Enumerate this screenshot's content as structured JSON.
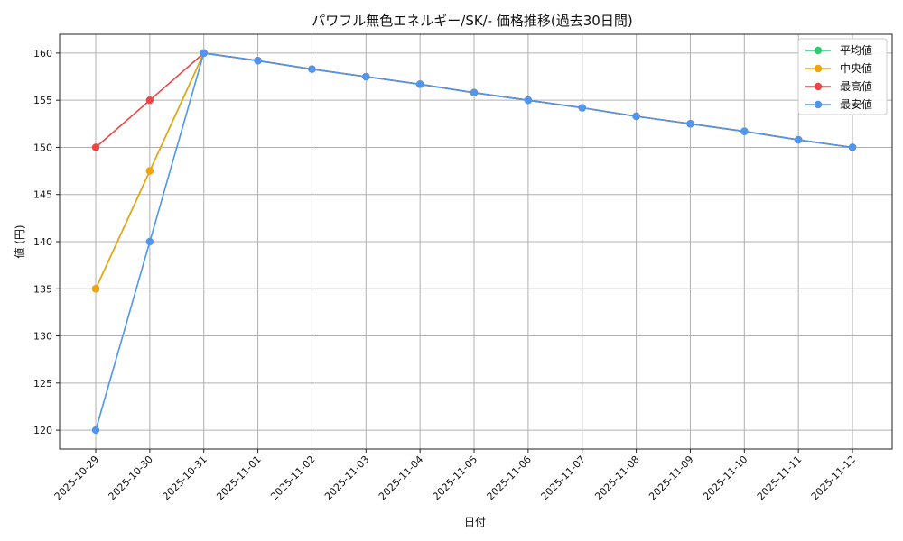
{
  "chart_data": {
    "type": "line",
    "title": "パワフル無色エネルギー/SK/- 価格推移(過去30日間)",
    "xlabel": "日付",
    "ylabel": "値 (円)",
    "categories": [
      "2025-10-29",
      "2025-10-30",
      "2025-10-31",
      "2025-11-01",
      "2025-11-02",
      "2025-11-03",
      "2025-11-04",
      "2025-11-05",
      "2025-11-06",
      "2025-11-07",
      "2025-11-08",
      "2025-11-09",
      "2025-11-10",
      "2025-11-11",
      "2025-11-12"
    ],
    "ylim": [
      118,
      162
    ],
    "yticks": [
      120,
      125,
      130,
      135,
      140,
      145,
      150,
      155,
      160
    ],
    "grid": true,
    "legend_position": "top-right",
    "series": [
      {
        "name": "平均値",
        "color": "#2ecc71",
        "values": [
          135,
          147.5,
          160,
          159.2,
          158.3,
          157.5,
          156.7,
          155.8,
          155.0,
          154.2,
          153.3,
          152.5,
          151.7,
          150.8,
          150.0
        ]
      },
      {
        "name": "中央値",
        "color": "#f0a30a",
        "values": [
          135,
          147.5,
          160,
          159.2,
          158.3,
          157.5,
          156.7,
          155.8,
          155.0,
          154.2,
          153.3,
          152.5,
          151.7,
          150.8,
          150.0
        ]
      },
      {
        "name": "最高値",
        "color": "#ef4444",
        "values": [
          150,
          155,
          160,
          159.2,
          158.3,
          157.5,
          156.7,
          155.8,
          155.0,
          154.2,
          153.3,
          152.5,
          151.7,
          150.8,
          150.0
        ]
      },
      {
        "name": "最安値",
        "color": "#4e96ef",
        "values": [
          120,
          140,
          160,
          159.2,
          158.3,
          157.5,
          156.7,
          155.8,
          155.0,
          154.2,
          153.3,
          152.5,
          151.7,
          150.8,
          150.0
        ]
      }
    ]
  }
}
